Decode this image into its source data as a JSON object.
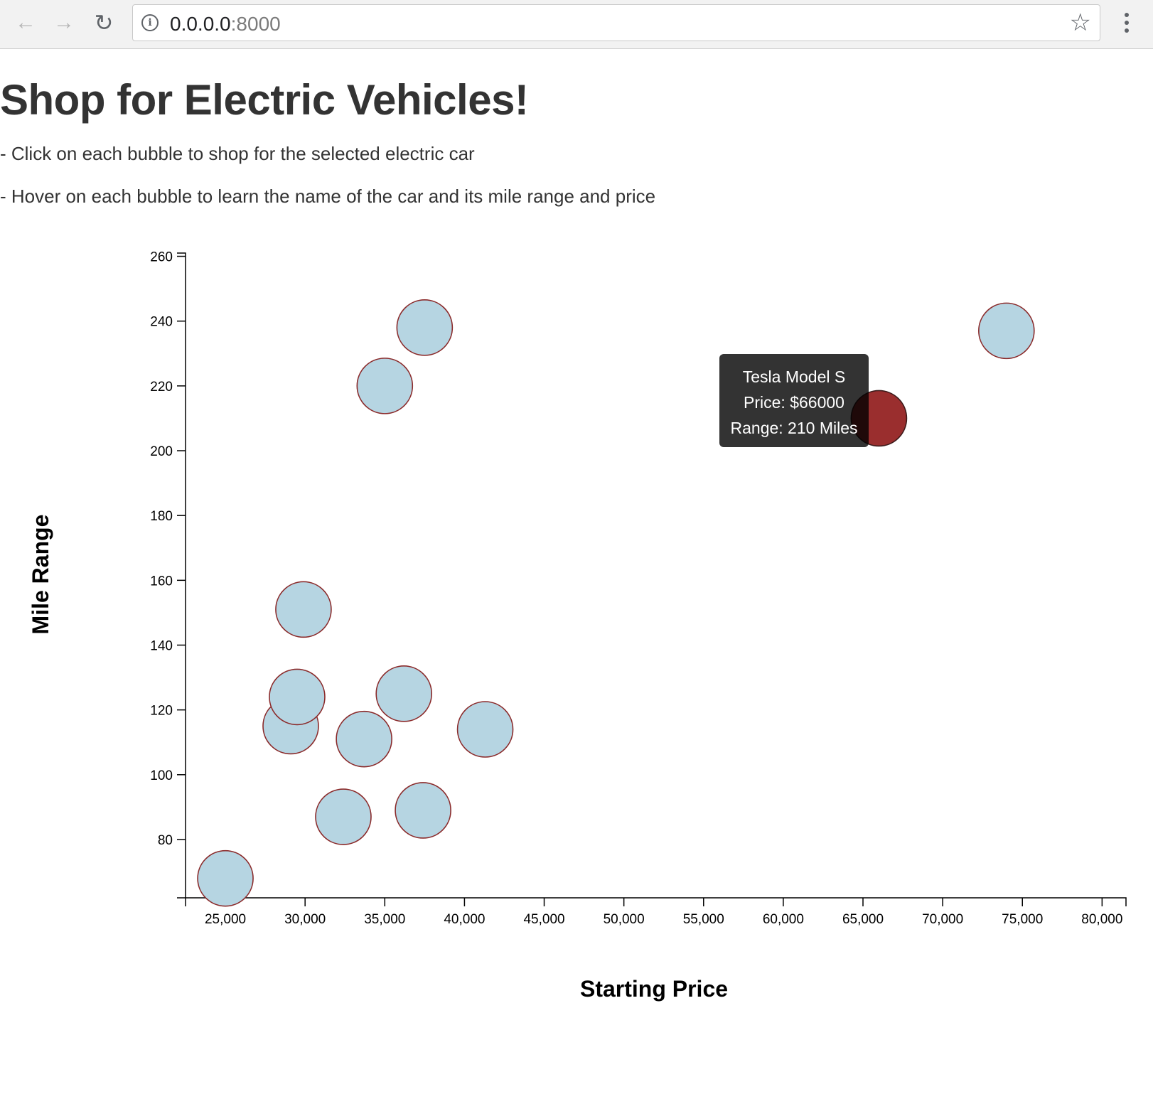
{
  "browser": {
    "url_host": "0.0.0.0",
    "url_port": ":8000",
    "back_icon": "arrow-left-icon",
    "forward_icon": "arrow-right-icon",
    "reload_icon": "reload-icon",
    "info_icon": "info-icon",
    "bookmark_icon": "star-icon",
    "menu_icon": "kebab-menu-icon"
  },
  "page": {
    "title": "Shop for Electric Vehicles!",
    "instructions": [
      "- Click on each bubble to shop for the selected electric car",
      "- Hover on each bubble to learn the name of the car and its mile range and price"
    ]
  },
  "tooltip": {
    "name": "Tesla Model S",
    "price": "Price: $66000",
    "range": "Range: 210 Miles"
  },
  "chart_data": {
    "type": "scatter",
    "xlabel": "Starting Price",
    "ylabel": "Mile Range",
    "xlim": [
      22500,
      81500
    ],
    "ylim": [
      62,
      261
    ],
    "x_ticks": [
      25000,
      30000,
      35000,
      40000,
      45000,
      50000,
      55000,
      60000,
      65000,
      70000,
      75000,
      80000
    ],
    "x_tick_labels": [
      "25,000",
      "30,000",
      "35,000",
      "40,000",
      "45,000",
      "50,000",
      "55,000",
      "60,000",
      "65,000",
      "70,000",
      "75,000",
      "80,000"
    ],
    "y_ticks": [
      80,
      100,
      120,
      140,
      160,
      180,
      200,
      220,
      240,
      260
    ],
    "y_tick_labels": [
      "80",
      "100",
      "120",
      "140",
      "160",
      "180",
      "200",
      "220",
      "240",
      "260"
    ],
    "points": [
      {
        "x": 37500,
        "y": 238
      },
      {
        "x": 35000,
        "y": 220
      },
      {
        "x": 74000,
        "y": 237
      },
      {
        "x": 66000,
        "y": 210,
        "highlighted": true
      },
      {
        "x": 29900,
        "y": 151
      },
      {
        "x": 29100,
        "y": 115
      },
      {
        "x": 29500,
        "y": 124
      },
      {
        "x": 36200,
        "y": 125
      },
      {
        "x": 33700,
        "y": 111
      },
      {
        "x": 41300,
        "y": 114
      },
      {
        "x": 32400,
        "y": 87
      },
      {
        "x": 37400,
        "y": 89
      },
      {
        "x": 25000,
        "y": 68
      }
    ],
    "colors": {
      "bubble_fill": "#b6d5e2",
      "bubble_stroke": "#8b2a2a",
      "highlight_fill": "#9a2e2e"
    },
    "grid": false,
    "legend": "none"
  }
}
